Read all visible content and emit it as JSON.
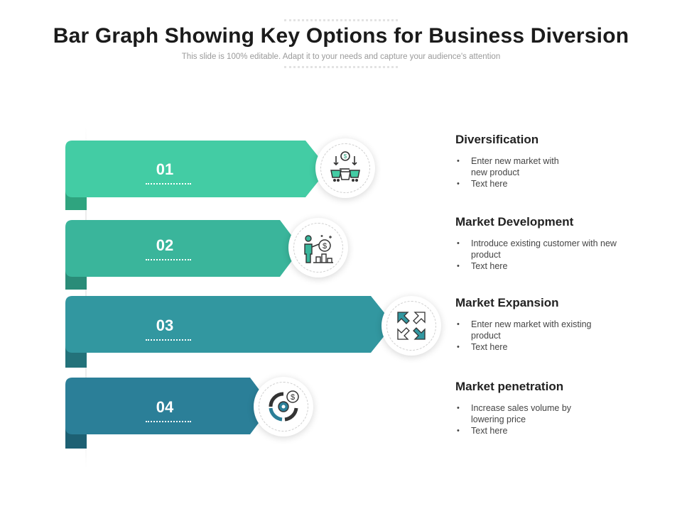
{
  "title": "Bar Graph Showing Key Options for Business Diversion",
  "subtitle": "This slide is 100% editable. Adapt it to your needs and capture your audience's attention",
  "options": [
    {
      "number": "01",
      "heading": "Diversification",
      "bullets": [
        "Enter new market with new product",
        "Text here"
      ],
      "icon": "shopping-basket-exchange-icon",
      "color": "#43cca4",
      "tail": "#2fa47f"
    },
    {
      "number": "02",
      "heading": "Market Development",
      "bullets": [
        "Introduce existing customer with new product",
        "Text here"
      ],
      "icon": "presenter-dollar-icon",
      "color": "#3ab59b",
      "tail": "#2a8c78"
    },
    {
      "number": "03",
      "heading": "Market Expansion",
      "bullets": [
        "Enter new market with existing product",
        "Text here"
      ],
      "icon": "expand-arrows-icon",
      "color": "#3297a0",
      "tail": "#23727a"
    },
    {
      "number": "04",
      "heading": "Market penetration",
      "bullets": [
        "Increase sales volume by lowering price",
        "Text here"
      ],
      "icon": "target-dollar-icon",
      "color": "#2b7f98",
      "tail": "#1d6073"
    }
  ]
}
